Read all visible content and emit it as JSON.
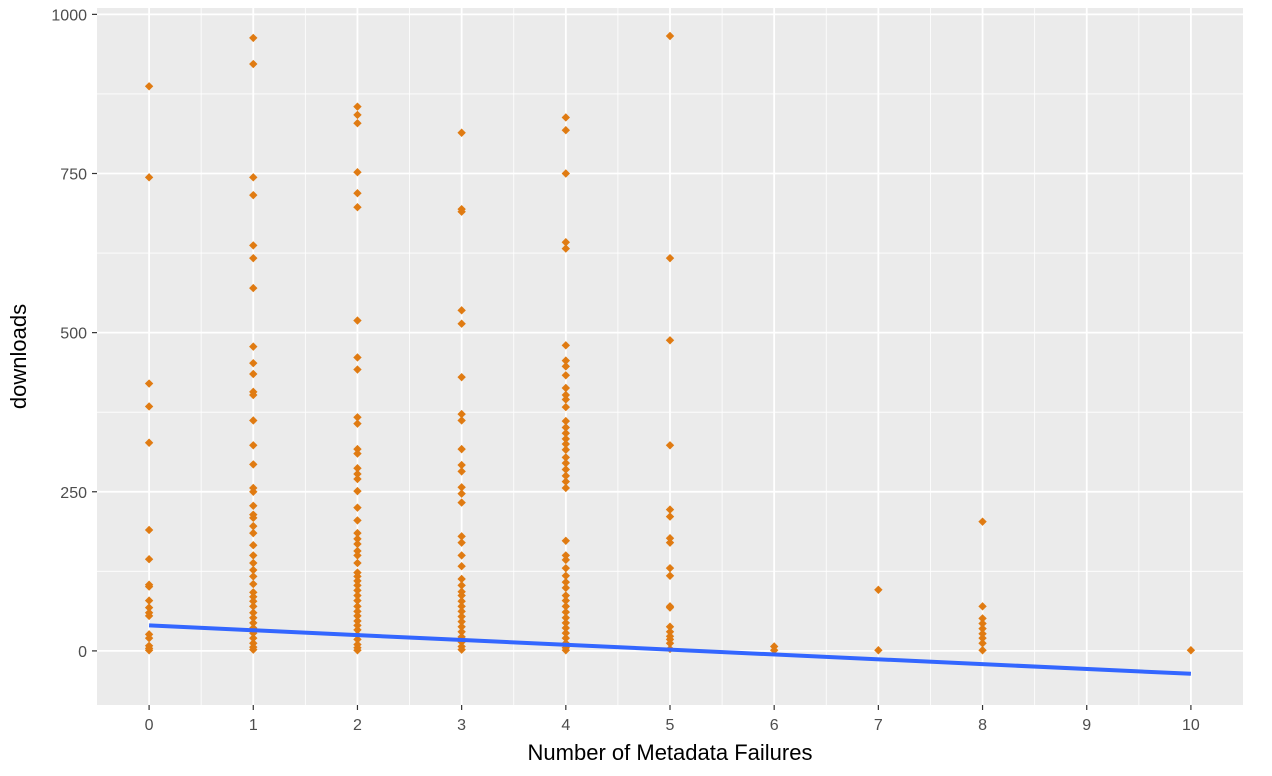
{
  "chart_data": {
    "type": "scatter",
    "title": "",
    "xlabel": "Number of Metadata Failures",
    "ylabel": "downloads",
    "xlim": [
      -0.5,
      10.5
    ],
    "ylim": [
      -85,
      1010
    ],
    "x_ticks": [
      0,
      1,
      2,
      3,
      4,
      5,
      6,
      7,
      8,
      9,
      10
    ],
    "x_tick_labels": [
      "0",
      "1",
      "2",
      "3",
      "4",
      "5",
      "6",
      "7",
      "8",
      "9",
      "10"
    ],
    "y_ticks": [
      0,
      250,
      500,
      750,
      1000
    ],
    "y_tick_labels": [
      "0",
      "250",
      "500",
      "750",
      "1000"
    ],
    "grid": true,
    "panel_background": "#ebebeb",
    "grid_color": "#ffffff",
    "point_color": "#e07b12",
    "line_color": "#3366ff",
    "series": [
      {
        "kind": "points",
        "points": [
          [
            0,
            887
          ],
          [
            0,
            744
          ],
          [
            0,
            420
          ],
          [
            0,
            384
          ],
          [
            0,
            327
          ],
          [
            0,
            190
          ],
          [
            0,
            144
          ],
          [
            0,
            104
          ],
          [
            0,
            101
          ],
          [
            0,
            79
          ],
          [
            0,
            68
          ],
          [
            0,
            60
          ],
          [
            0,
            55
          ],
          [
            0,
            26
          ],
          [
            0,
            20
          ],
          [
            0,
            8
          ],
          [
            0,
            4
          ],
          [
            0,
            1
          ],
          [
            1,
            963
          ],
          [
            1,
            922
          ],
          [
            1,
            744
          ],
          [
            1,
            716
          ],
          [
            1,
            637
          ],
          [
            1,
            617
          ],
          [
            1,
            570
          ],
          [
            1,
            478
          ],
          [
            1,
            452
          ],
          [
            1,
            435
          ],
          [
            1,
            407
          ],
          [
            1,
            402
          ],
          [
            1,
            362
          ],
          [
            1,
            323
          ],
          [
            1,
            293
          ],
          [
            1,
            256
          ],
          [
            1,
            250
          ],
          [
            1,
            228
          ],
          [
            1,
            214
          ],
          [
            1,
            209
          ],
          [
            1,
            196
          ],
          [
            1,
            185
          ],
          [
            1,
            166
          ],
          [
            1,
            150
          ],
          [
            1,
            138
          ],
          [
            1,
            127
          ],
          [
            1,
            117
          ],
          [
            1,
            105
          ],
          [
            1,
            92
          ],
          [
            1,
            85
          ],
          [
            1,
            78
          ],
          [
            1,
            70
          ],
          [
            1,
            60
          ],
          [
            1,
            52
          ],
          [
            1,
            44
          ],
          [
            1,
            36
          ],
          [
            1,
            28
          ],
          [
            1,
            20
          ],
          [
            1,
            12
          ],
          [
            1,
            6
          ],
          [
            1,
            2
          ],
          [
            2,
            855
          ],
          [
            2,
            842
          ],
          [
            2,
            829
          ],
          [
            2,
            752
          ],
          [
            2,
            719
          ],
          [
            2,
            697
          ],
          [
            2,
            519
          ],
          [
            2,
            461
          ],
          [
            2,
            442
          ],
          [
            2,
            367
          ],
          [
            2,
            357
          ],
          [
            2,
            317
          ],
          [
            2,
            310
          ],
          [
            2,
            287
          ],
          [
            2,
            278
          ],
          [
            2,
            270
          ],
          [
            2,
            251
          ],
          [
            2,
            225
          ],
          [
            2,
            205
          ],
          [
            2,
            185
          ],
          [
            2,
            176
          ],
          [
            2,
            168
          ],
          [
            2,
            157
          ],
          [
            2,
            150
          ],
          [
            2,
            138
          ],
          [
            2,
            123
          ],
          [
            2,
            117
          ],
          [
            2,
            110
          ],
          [
            2,
            103
          ],
          [
            2,
            95
          ],
          [
            2,
            87
          ],
          [
            2,
            79
          ],
          [
            2,
            70
          ],
          [
            2,
            62
          ],
          [
            2,
            55
          ],
          [
            2,
            47
          ],
          [
            2,
            40
          ],
          [
            2,
            33
          ],
          [
            2,
            25
          ],
          [
            2,
            18
          ],
          [
            2,
            10
          ],
          [
            2,
            5
          ],
          [
            2,
            1
          ],
          [
            3,
            814
          ],
          [
            3,
            694
          ],
          [
            3,
            690
          ],
          [
            3,
            535
          ],
          [
            3,
            514
          ],
          [
            3,
            430
          ],
          [
            3,
            372
          ],
          [
            3,
            362
          ],
          [
            3,
            317
          ],
          [
            3,
            292
          ],
          [
            3,
            282
          ],
          [
            3,
            257
          ],
          [
            3,
            247
          ],
          [
            3,
            233
          ],
          [
            3,
            180
          ],
          [
            3,
            170
          ],
          [
            3,
            150
          ],
          [
            3,
            133
          ],
          [
            3,
            113
          ],
          [
            3,
            103
          ],
          [
            3,
            93
          ],
          [
            3,
            87
          ],
          [
            3,
            78
          ],
          [
            3,
            70
          ],
          [
            3,
            62
          ],
          [
            3,
            54
          ],
          [
            3,
            46
          ],
          [
            3,
            38
          ],
          [
            3,
            30
          ],
          [
            3,
            22
          ],
          [
            3,
            14
          ],
          [
            3,
            7
          ],
          [
            3,
            2
          ],
          [
            4,
            838
          ],
          [
            4,
            818
          ],
          [
            4,
            750
          ],
          [
            4,
            642
          ],
          [
            4,
            632
          ],
          [
            4,
            480
          ],
          [
            4,
            456
          ],
          [
            4,
            447
          ],
          [
            4,
            433
          ],
          [
            4,
            413
          ],
          [
            4,
            402
          ],
          [
            4,
            395
          ],
          [
            4,
            383
          ],
          [
            4,
            361
          ],
          [
            4,
            351
          ],
          [
            4,
            342
          ],
          [
            4,
            333
          ],
          [
            4,
            325
          ],
          [
            4,
            316
          ],
          [
            4,
            304
          ],
          [
            4,
            295
          ],
          [
            4,
            285
          ],
          [
            4,
            275
          ],
          [
            4,
            266
          ],
          [
            4,
            256
          ],
          [
            4,
            173
          ],
          [
            4,
            150
          ],
          [
            4,
            143
          ],
          [
            4,
            130
          ],
          [
            4,
            118
          ],
          [
            4,
            108
          ],
          [
            4,
            99
          ],
          [
            4,
            87
          ],
          [
            4,
            79
          ],
          [
            4,
            70
          ],
          [
            4,
            61
          ],
          [
            4,
            52
          ],
          [
            4,
            44
          ],
          [
            4,
            36
          ],
          [
            4,
            28
          ],
          [
            4,
            20
          ],
          [
            4,
            12
          ],
          [
            4,
            5
          ],
          [
            4,
            1
          ],
          [
            5,
            966
          ],
          [
            5,
            617
          ],
          [
            5,
            488
          ],
          [
            5,
            323
          ],
          [
            5,
            222
          ],
          [
            5,
            211
          ],
          [
            5,
            177
          ],
          [
            5,
            170
          ],
          [
            5,
            130
          ],
          [
            5,
            118
          ],
          [
            5,
            70
          ],
          [
            5,
            68
          ],
          [
            5,
            38
          ],
          [
            5,
            30
          ],
          [
            5,
            23
          ],
          [
            5,
            18
          ],
          [
            5,
            12
          ],
          [
            5,
            3
          ],
          [
            6,
            7
          ],
          [
            6,
            1
          ],
          [
            7,
            96
          ],
          [
            7,
            1
          ],
          [
            8,
            203
          ],
          [
            8,
            70
          ],
          [
            8,
            51
          ],
          [
            8,
            43
          ],
          [
            8,
            35
          ],
          [
            8,
            27
          ],
          [
            8,
            20
          ],
          [
            8,
            12
          ],
          [
            8,
            1
          ],
          [
            10,
            1
          ]
        ]
      },
      {
        "kind": "line",
        "points": [
          [
            0,
            40
          ],
          [
            10,
            -36
          ]
        ]
      }
    ]
  }
}
